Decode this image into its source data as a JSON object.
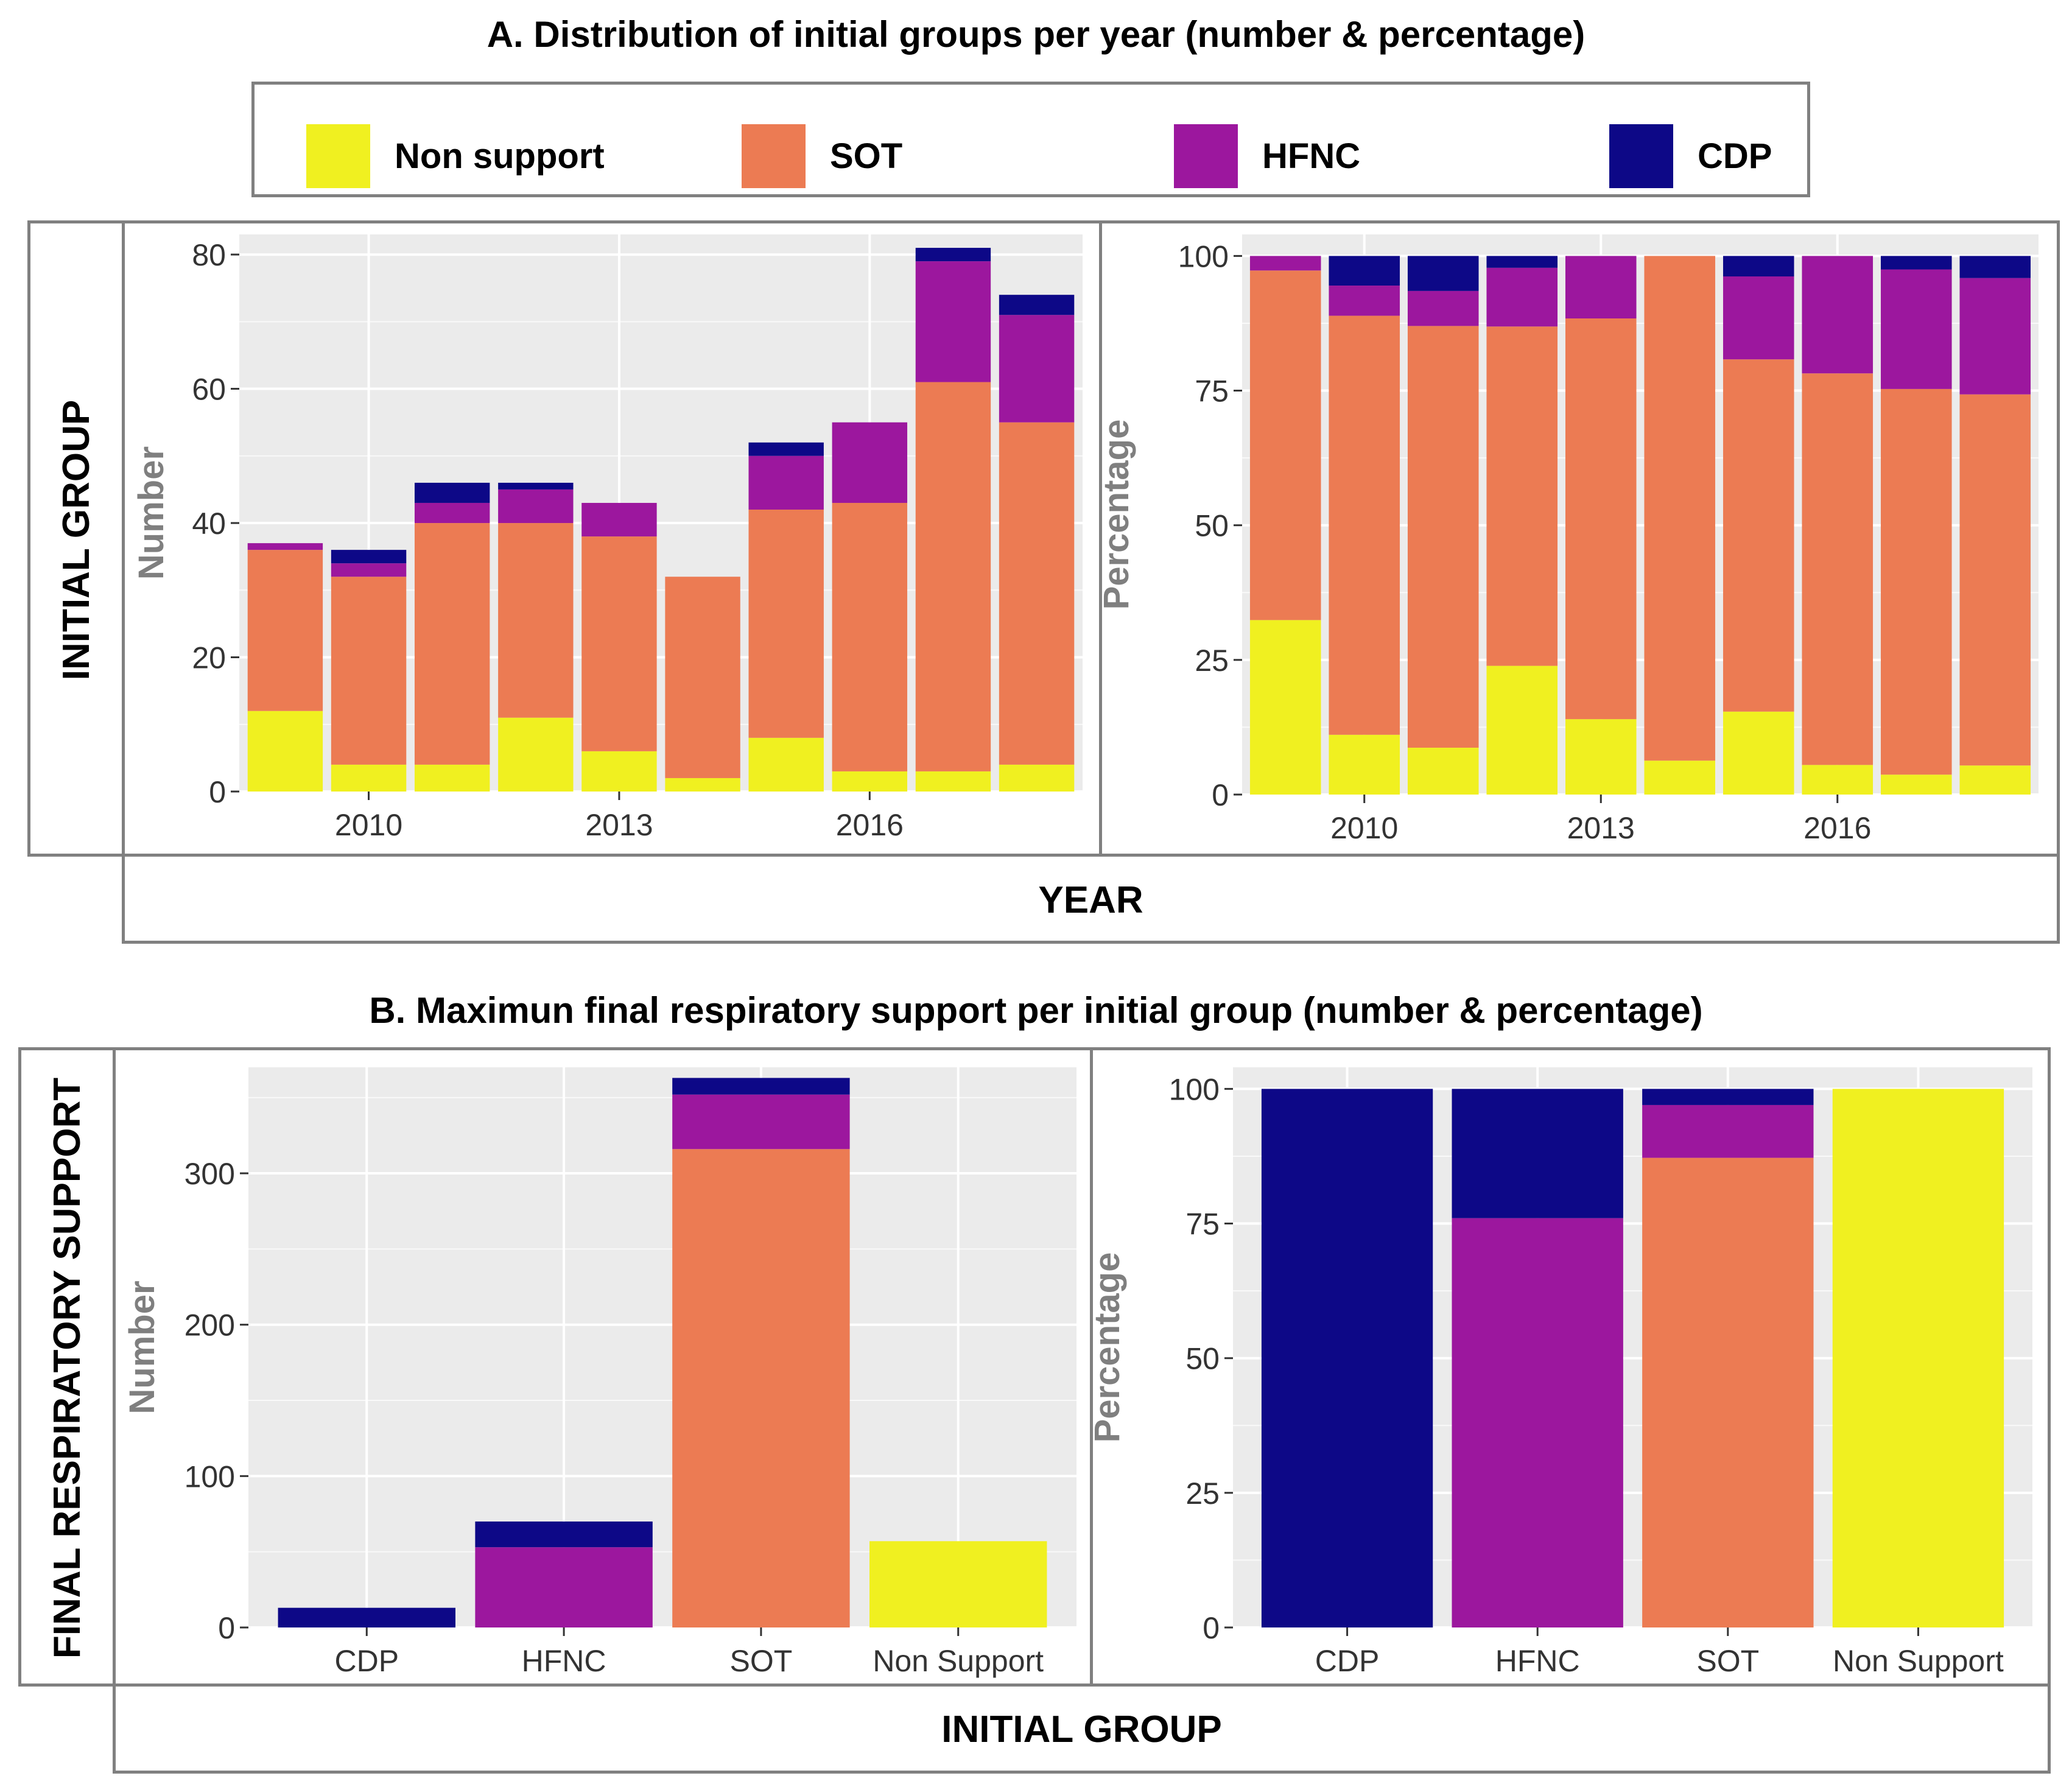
{
  "titles": {
    "a": "A. Distribution of initial groups per year (number & percentage)",
    "b": "B. Maximun final respiratory support per initial group (number & percentage)"
  },
  "legend": [
    {
      "label": "Non support",
      "color": "#F0F020"
    },
    {
      "label": "SOT",
      "color": "#EC7B53"
    },
    {
      "label": "HFNC",
      "color": "#9C179E"
    },
    {
      "label": "CDP",
      "color": "#0D0887"
    }
  ],
  "strip_labels": {
    "initial_group_row": "INITIAL GROUP",
    "year": "YEAR",
    "final_support_row": "FINAL RESPIRATORY SUPPORT",
    "initial_group_col": "INITIAL GROUP"
  },
  "colors": {
    "panel_bg": "#EBEBEB",
    "grid": "#FFFFFF",
    "axis_title": "#7F7F7F",
    "tick": "#333333"
  },
  "chart_data": [
    {
      "id": "a-number",
      "type": "bar",
      "stacked": true,
      "ylabel": "Number",
      "xlabel": "",
      "ylim": [
        0,
        83
      ],
      "yticks": [
        0,
        20,
        40,
        60,
        80
      ],
      "x": [
        2009,
        2010,
        2011,
        2012,
        2013,
        2014,
        2015,
        2016,
        2017,
        2018
      ],
      "xlim": [
        2008.45,
        2018.55
      ],
      "xticks": [
        2010,
        2013,
        2016
      ],
      "series": [
        {
          "name": "Non support",
          "color": "#F0F020",
          "values": [
            12,
            4,
            4,
            11,
            6,
            2,
            8,
            3,
            3,
            4
          ]
        },
        {
          "name": "SOT",
          "color": "#EC7B53",
          "values": [
            24,
            28,
            36,
            29,
            32,
            30,
            34,
            40,
            58,
            51
          ]
        },
        {
          "name": "HFNC",
          "color": "#9C179E",
          "values": [
            1,
            2,
            3,
            5,
            5,
            0,
            8,
            12,
            18,
            16
          ]
        },
        {
          "name": "CDP",
          "color": "#0D0887",
          "values": [
            0,
            2,
            3,
            1,
            0,
            0,
            2,
            0,
            2,
            3
          ]
        }
      ]
    },
    {
      "id": "a-percentage",
      "type": "bar",
      "stacked": true,
      "ylabel": "Percentage",
      "xlabel": "",
      "ylim": [
        0,
        104
      ],
      "yticks": [
        0,
        25,
        50,
        75,
        100
      ],
      "x": [
        2009,
        2010,
        2011,
        2012,
        2013,
        2014,
        2015,
        2016,
        2017,
        2018
      ],
      "xlim": [
        2008.45,
        2018.55
      ],
      "xticks": [
        2010,
        2013,
        2016
      ],
      "series": [
        {
          "name": "Non support",
          "color": "#F0F020",
          "values": [
            32.4,
            11.1,
            8.7,
            23.9,
            14.0,
            6.3,
            15.4,
            5.5,
            3.7,
            5.4
          ]
        },
        {
          "name": "SOT",
          "color": "#EC7B53",
          "values": [
            64.9,
            77.8,
            78.3,
            63.0,
            74.4,
            93.7,
            65.4,
            72.7,
            71.6,
            68.9
          ]
        },
        {
          "name": "HFNC",
          "color": "#9C179E",
          "values": [
            2.7,
            5.6,
            6.5,
            10.9,
            11.6,
            0,
            15.4,
            21.8,
            22.2,
            21.6
          ]
        },
        {
          "name": "CDP",
          "color": "#0D0887",
          "values": [
            0,
            5.5,
            6.5,
            2.2,
            0,
            0,
            3.8,
            0,
            2.5,
            4.1
          ]
        }
      ]
    },
    {
      "id": "b-number",
      "type": "bar",
      "stacked": true,
      "ylabel": "Number",
      "xlabel": "",
      "ylim": [
        0,
        370
      ],
      "yticks": [
        0,
        100,
        200,
        300
      ],
      "categories": [
        "CDP",
        "HFNC",
        "SOT",
        "Non Support"
      ],
      "series": [
        {
          "name": "Non support",
          "color": "#F0F020",
          "values": [
            0,
            0,
            0,
            57
          ]
        },
        {
          "name": "SOT",
          "color": "#EC7B53",
          "values": [
            0,
            0,
            316,
            0
          ]
        },
        {
          "name": "HFNC",
          "color": "#9C179E",
          "values": [
            0,
            53,
            36,
            0
          ]
        },
        {
          "name": "CDP",
          "color": "#0D0887",
          "values": [
            13,
            17,
            11,
            0
          ]
        }
      ]
    },
    {
      "id": "b-percentage",
      "type": "bar",
      "stacked": true,
      "ylabel": "Percentage",
      "xlabel": "",
      "ylim": [
        0,
        104
      ],
      "yticks": [
        0,
        25,
        50,
        75,
        100
      ],
      "categories": [
        "CDP",
        "HFNC",
        "SOT",
        "Non Support"
      ],
      "series": [
        {
          "name": "Non support",
          "color": "#F0F020",
          "values": [
            0,
            0,
            0,
            100
          ]
        },
        {
          "name": "SOT",
          "color": "#EC7B53",
          "values": [
            0,
            0,
            87.2,
            0
          ]
        },
        {
          "name": "HFNC",
          "color": "#9C179E",
          "values": [
            0,
            76,
            9.8,
            0
          ]
        },
        {
          "name": "CDP",
          "color": "#0D0887",
          "values": [
            100,
            24,
            3,
            0
          ]
        }
      ]
    }
  ]
}
